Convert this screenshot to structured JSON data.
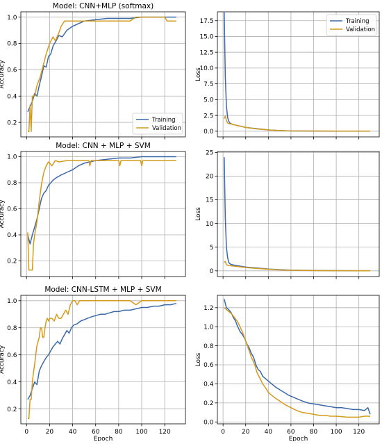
{
  "colors": {
    "training": "#3a68a8",
    "validation": "#d49a1c",
    "grid": "#b0b0b0"
  },
  "chart_data": [
    {
      "type": "line",
      "title": "Model: CNN+MLP (softmax)",
      "xlabel": "",
      "ylabel": "Accuracy",
      "xlim": [
        -5,
        138
      ],
      "ylim": [
        0.09,
        1.04
      ],
      "yticks": [
        0.2,
        0.4,
        0.6,
        0.8,
        1.0
      ],
      "ytick_labels": [
        "0.2",
        "0.4",
        "0.6",
        "0.8",
        "1.0"
      ],
      "xticks": [
        0,
        20,
        40,
        60,
        80,
        100,
        120
      ],
      "xtick_labels": [],
      "legend": {
        "placement": "lower-right",
        "entries": [
          "Training",
          "Validation"
        ]
      },
      "grid": true,
      "series": [
        {
          "name": "Training",
          "kind": "training",
          "x": [
            1,
            3,
            5,
            7,
            9,
            11,
            13,
            15,
            17,
            19,
            21,
            23,
            25,
            28,
            31,
            35,
            40,
            45,
            50,
            60,
            70,
            80,
            90,
            100,
            110,
            120,
            130
          ],
          "values": [
            0.28,
            0.32,
            0.36,
            0.42,
            0.4,
            0.48,
            0.55,
            0.63,
            0.62,
            0.7,
            0.72,
            0.78,
            0.81,
            0.86,
            0.85,
            0.9,
            0.93,
            0.95,
            0.97,
            0.98,
            0.99,
            0.99,
            0.99,
            1.0,
            1.0,
            1.0,
            1.0
          ]
        },
        {
          "name": "Validation",
          "kind": "validation",
          "x": [
            1,
            2,
            3,
            4,
            5,
            7,
            9,
            12,
            15,
            17,
            20,
            23,
            25,
            28,
            30,
            33,
            36,
            40,
            50,
            60,
            70,
            80,
            85,
            90,
            95,
            100,
            110,
            120,
            122,
            130
          ],
          "values": [
            0.13,
            0.13,
            0.33,
            0.13,
            0.4,
            0.4,
            0.48,
            0.55,
            0.65,
            0.72,
            0.8,
            0.85,
            0.82,
            0.88,
            0.93,
            0.97,
            0.97,
            0.97,
            0.97,
            0.97,
            0.97,
            0.97,
            0.97,
            0.97,
            1.0,
            1.0,
            1.0,
            1.0,
            0.97,
            0.97
          ]
        }
      ]
    },
    {
      "type": "line",
      "title": "",
      "xlabel": "",
      "ylabel": "Loss",
      "xlim": [
        -5,
        138
      ],
      "ylim": [
        -0.9,
        18.9
      ],
      "yticks": [
        0.0,
        2.5,
        5.0,
        7.5,
        10.0,
        12.5,
        15.0,
        17.5
      ],
      "ytick_labels": [
        "0.0",
        "2.5",
        "5.0",
        "7.5",
        "10.0",
        "12.5",
        "15.0",
        "17.5"
      ],
      "xticks": [
        0,
        20,
        40,
        60,
        80,
        100,
        120
      ],
      "xtick_labels": [],
      "legend": {
        "placement": "top-right",
        "entries": [
          "Training",
          "Validation"
        ]
      },
      "grid": true,
      "series": [
        {
          "name": "Training",
          "kind": "training",
          "x": [
            1,
            2,
            3,
            4,
            5,
            6,
            8,
            10,
            15,
            20,
            30,
            40,
            50,
            60,
            80,
            100,
            120,
            130
          ],
          "values": [
            18.8,
            8.5,
            4.0,
            2.2,
            1.6,
            1.3,
            1.1,
            1.0,
            0.8,
            0.6,
            0.4,
            0.2,
            0.1,
            0.05,
            0.02,
            0.01,
            0.01,
            0.01
          ]
        },
        {
          "name": "Validation",
          "kind": "validation",
          "x": [
            1,
            2,
            3,
            4,
            5,
            8,
            10,
            15,
            20,
            30,
            40,
            50,
            60,
            80,
            100,
            120,
            130
          ],
          "values": [
            2.0,
            2.4,
            1.7,
            1.3,
            1.2,
            1.1,
            1.0,
            0.8,
            0.6,
            0.35,
            0.2,
            0.1,
            0.05,
            0.03,
            0.02,
            0.02,
            0.02
          ]
        }
      ]
    },
    {
      "type": "line",
      "title": "Model: CNN + MLP + SVM",
      "xlabel": "",
      "ylabel": "Accuracy",
      "xlim": [
        -5,
        138
      ],
      "ylim": [
        0.08,
        1.04
      ],
      "yticks": [
        0.2,
        0.4,
        0.6,
        0.8,
        1.0
      ],
      "ytick_labels": [
        "0.2",
        "0.4",
        "0.6",
        "0.8",
        "1.0"
      ],
      "xticks": [
        0,
        20,
        40,
        60,
        80,
        100,
        120
      ],
      "xtick_labels": [],
      "legend": null,
      "grid": true,
      "series": [
        {
          "name": "Training",
          "kind": "training",
          "x": [
            1,
            3,
            5,
            7,
            9,
            11,
            13,
            15,
            17,
            19,
            21,
            23,
            26,
            30,
            35,
            40,
            45,
            50,
            55,
            60,
            70,
            80,
            90,
            100,
            110,
            120,
            130
          ],
          "values": [
            0.4,
            0.33,
            0.4,
            0.46,
            0.52,
            0.6,
            0.68,
            0.72,
            0.74,
            0.78,
            0.8,
            0.82,
            0.84,
            0.86,
            0.88,
            0.9,
            0.93,
            0.95,
            0.96,
            0.97,
            0.98,
            0.99,
            0.99,
            1.0,
            1.0,
            1.0,
            1.0
          ]
        },
        {
          "name": "Validation",
          "kind": "validation",
          "x": [
            1,
            2,
            3,
            4,
            5,
            6,
            7,
            9,
            11,
            13,
            15,
            17,
            19,
            22,
            25,
            28,
            35,
            40,
            54,
            55,
            56,
            60,
            75,
            80,
            81,
            82,
            85,
            99,
            100,
            101,
            110,
            120,
            130
          ],
          "values": [
            0.42,
            0.13,
            0.13,
            0.13,
            0.13,
            0.33,
            0.4,
            0.5,
            0.66,
            0.79,
            0.88,
            0.93,
            0.96,
            0.93,
            0.97,
            0.96,
            0.97,
            0.97,
            0.97,
            0.93,
            0.97,
            0.97,
            0.97,
            0.97,
            0.93,
            0.97,
            0.97,
            0.97,
            0.93,
            0.97,
            0.97,
            0.97,
            0.97
          ]
        }
      ]
    },
    {
      "type": "line",
      "title": "",
      "xlabel": "",
      "ylabel": "Loss",
      "xlim": [
        -5,
        138
      ],
      "ylim": [
        -1.2,
        25.2
      ],
      "yticks": [
        0,
        5,
        10,
        15,
        20,
        25
      ],
      "ytick_labels": [
        "0",
        "5",
        "10",
        "15",
        "20",
        "25"
      ],
      "xticks": [
        0,
        20,
        40,
        60,
        80,
        100,
        120
      ],
      "xtick_labels": [],
      "legend": null,
      "grid": true,
      "series": [
        {
          "name": "Training",
          "kind": "training",
          "x": [
            1,
            2,
            3,
            4,
            5,
            6,
            8,
            10,
            15,
            20,
            30,
            40,
            50,
            60,
            80,
            100,
            120,
            130
          ],
          "values": [
            24.0,
            11.0,
            5.0,
            2.8,
            1.8,
            1.5,
            1.3,
            1.2,
            1.0,
            0.8,
            0.6,
            0.4,
            0.25,
            0.15,
            0.08,
            0.05,
            0.03,
            0.03
          ]
        },
        {
          "name": "Validation",
          "kind": "validation",
          "x": [
            1,
            2,
            3,
            4,
            6,
            8,
            10,
            15,
            20,
            30,
            40,
            50,
            60,
            80,
            100,
            120,
            130
          ],
          "values": [
            1.8,
            2.0,
            1.3,
            1.2,
            1.1,
            1.05,
            1.0,
            0.85,
            0.7,
            0.5,
            0.35,
            0.2,
            0.12,
            0.05,
            0.03,
            0.02,
            0.02
          ]
        }
      ]
    },
    {
      "type": "line",
      "title": "Model: CNN-LSTM + MLP + SVM",
      "xlabel": "Epoch",
      "ylabel": "Accuracy",
      "xlim": [
        -5,
        138
      ],
      "ylim": [
        0.09,
        1.04
      ],
      "yticks": [
        0.2,
        0.4,
        0.6,
        0.8,
        1.0
      ],
      "ytick_labels": [
        "0.2",
        "0.4",
        "0.6",
        "0.8",
        "1.0"
      ],
      "xticks": [
        0,
        20,
        40,
        60,
        80,
        100,
        120
      ],
      "xtick_labels": [
        "0",
        "20",
        "40",
        "60",
        "80",
        "100",
        "120"
      ],
      "legend": null,
      "grid": true,
      "series": [
        {
          "name": "Training",
          "kind": "training",
          "x": [
            1,
            3,
            5,
            7,
            9,
            11,
            13,
            15,
            17,
            19,
            21,
            23,
            25,
            27,
            29,
            31,
            33,
            35,
            37,
            39,
            41,
            44,
            47,
            50,
            53,
            56,
            60,
            64,
            68,
            72,
            76,
            80,
            85,
            90,
            95,
            100,
            105,
            110,
            115,
            120,
            125,
            130
          ],
          "values": [
            0.27,
            0.3,
            0.35,
            0.4,
            0.38,
            0.48,
            0.52,
            0.55,
            0.58,
            0.6,
            0.63,
            0.66,
            0.68,
            0.7,
            0.68,
            0.72,
            0.75,
            0.78,
            0.76,
            0.8,
            0.82,
            0.83,
            0.85,
            0.86,
            0.87,
            0.88,
            0.89,
            0.9,
            0.9,
            0.91,
            0.92,
            0.92,
            0.93,
            0.93,
            0.94,
            0.95,
            0.95,
            0.96,
            0.96,
            0.97,
            0.97,
            0.98
          ]
        },
        {
          "name": "Validation",
          "kind": "validation",
          "x": [
            1,
            2,
            3,
            4,
            5,
            6,
            7,
            8,
            9,
            10,
            11,
            12,
            13,
            14,
            15,
            16,
            17,
            18,
            19,
            20,
            22,
            24,
            26,
            28,
            30,
            32,
            34,
            36,
            38,
            40,
            42,
            44,
            46,
            48,
            50,
            55,
            60,
            70,
            80,
            90,
            95,
            100,
            110,
            120,
            130
          ],
          "values": [
            0.13,
            0.13,
            0.27,
            0.27,
            0.4,
            0.47,
            0.53,
            0.6,
            0.67,
            0.7,
            0.73,
            0.8,
            0.8,
            0.73,
            0.73,
            0.8,
            0.85,
            0.87,
            0.85,
            0.87,
            0.87,
            0.85,
            0.9,
            0.87,
            0.87,
            0.9,
            0.93,
            0.9,
            0.97,
            1.0,
            1.0,
            0.97,
            1.0,
            1.0,
            1.0,
            1.0,
            1.0,
            1.0,
            1.0,
            1.0,
            0.97,
            1.0,
            1.0,
            1.0,
            1.0
          ]
        }
      ]
    },
    {
      "type": "line",
      "title": "",
      "xlabel": "Epoch",
      "ylabel": "Loss",
      "xlim": [
        -5,
        138
      ],
      "ylim": [
        -0.02,
        1.33
      ],
      "yticks": [
        0.0,
        0.2,
        0.4,
        0.6,
        0.8,
        1.0,
        1.2
      ],
      "ytick_labels": [
        "0.0",
        "0.2",
        "0.4",
        "0.6",
        "0.8",
        "1.0",
        "1.2"
      ],
      "xticks": [
        0,
        20,
        40,
        60,
        80,
        100,
        120
      ],
      "xtick_labels": [
        "0",
        "20",
        "40",
        "60",
        "80",
        "100",
        "120"
      ],
      "legend": null,
      "grid": true,
      "series": [
        {
          "name": "Training",
          "kind": "training",
          "x": [
            1,
            3,
            5,
            7,
            9,
            11,
            13,
            15,
            17,
            19,
            21,
            23,
            25,
            27,
            29,
            31,
            33,
            35,
            37,
            40,
            43,
            46,
            50,
            54,
            58,
            62,
            66,
            70,
            75,
            80,
            85,
            90,
            95,
            100,
            105,
            110,
            115,
            120,
            125,
            128,
            130
          ],
          "values": [
            1.29,
            1.2,
            1.18,
            1.15,
            1.1,
            1.06,
            1.0,
            0.95,
            0.92,
            0.88,
            0.82,
            0.78,
            0.72,
            0.68,
            0.6,
            0.55,
            0.53,
            0.48,
            0.46,
            0.43,
            0.4,
            0.37,
            0.34,
            0.31,
            0.28,
            0.26,
            0.24,
            0.22,
            0.2,
            0.19,
            0.18,
            0.17,
            0.16,
            0.15,
            0.15,
            0.14,
            0.13,
            0.13,
            0.12,
            0.15,
            0.08
          ]
        },
        {
          "name": "Validation",
          "kind": "validation",
          "x": [
            1,
            3,
            5,
            7,
            10,
            13,
            15,
            18,
            20,
            23,
            25,
            28,
            30,
            33,
            35,
            38,
            40,
            45,
            50,
            55,
            60,
            65,
            70,
            75,
            80,
            85,
            90,
            95,
            100,
            110,
            120,
            125,
            130
          ],
          "values": [
            1.2,
            1.18,
            1.16,
            1.14,
            1.1,
            1.05,
            1.0,
            0.92,
            0.85,
            0.75,
            0.68,
            0.6,
            0.52,
            0.45,
            0.4,
            0.35,
            0.31,
            0.26,
            0.22,
            0.18,
            0.15,
            0.12,
            0.1,
            0.09,
            0.08,
            0.07,
            0.07,
            0.06,
            0.06,
            0.05,
            0.05,
            0.06,
            0.06
          ]
        }
      ]
    }
  ]
}
